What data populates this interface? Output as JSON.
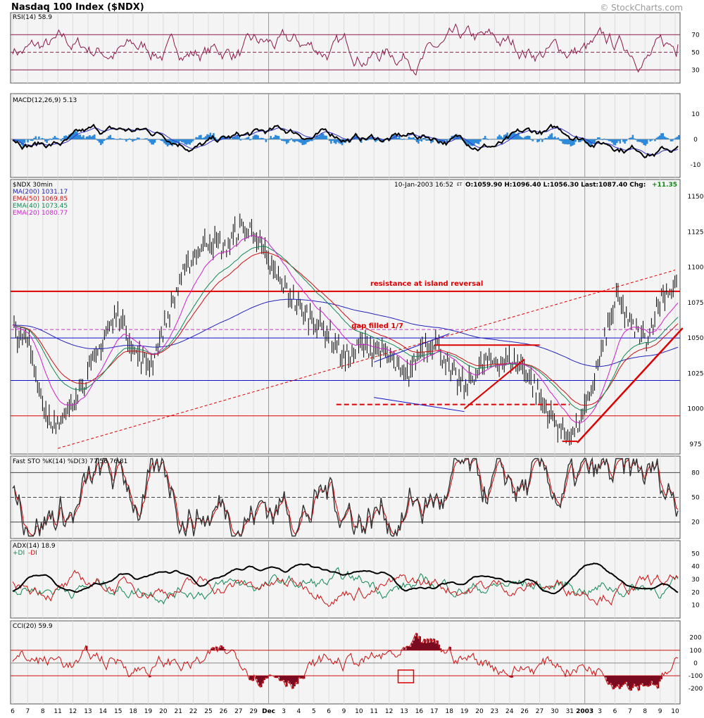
{
  "header": {
    "title": "Nasdaq 100 Index ($NDX)",
    "credit": "© StockCharts.com"
  },
  "panels": {
    "rsi": {
      "label": "RSI(14) 58.9",
      "levels": [
        70,
        50,
        30
      ],
      "ticks": [
        "70",
        "50",
        "30"
      ],
      "range": [
        15,
        95
      ]
    },
    "macd": {
      "label": "MACD(12,26,9) 5.13",
      "ticks": [
        "10",
        "0",
        "-10"
      ],
      "range": [
        -15,
        18
      ]
    },
    "price": {
      "label": "$NDX 30min",
      "ma200": "MA(200) 1031.17",
      "ema50": "EMA(50) 1069.85",
      "ema40": "EMA(40) 1073.45",
      "ema20": "EMA(20) 1080.77",
      "quote_date": "10-Jan-2003 16:52",
      "quote_et": "ET",
      "quote_ohlc": "O:1059.90 H:1096.40 L:1056.30 Last:1087.40 Chg:",
      "quote_chg": "+11.35",
      "annotation_resistance": "resistance at island reversal",
      "annotation_gap": "gap filled 1/7",
      "ticks": [
        "1150",
        "1125",
        "1100",
        "1075",
        "1050",
        "1025",
        "1000",
        "975"
      ],
      "range": [
        968,
        1162
      ]
    },
    "sto": {
      "label": "Fast STO %K(14) %D(3) 77.56 76.81",
      "ticks": [
        "80",
        "50",
        "20"
      ],
      "range": [
        0,
        100
      ]
    },
    "adx": {
      "label": "ADX(14) 18.9",
      "di_plus": "+DI",
      "di_minus": "-DI",
      "ticks": [
        "50",
        "40",
        "30",
        "20",
        "10"
      ],
      "range": [
        0,
        60
      ]
    },
    "cci": {
      "label": "CCI(20) 59.9",
      "ticks": [
        "200",
        "100",
        "0",
        "-100",
        "-200"
      ],
      "range": [
        -320,
        330
      ]
    }
  },
  "x_axis": {
    "dates": [
      "6",
      "7",
      "8",
      "11",
      "12",
      "13",
      "14",
      "15",
      "18",
      "19",
      "20",
      "21",
      "22",
      "25",
      "26",
      "27",
      "29",
      "Dec",
      "3",
      "4",
      "5",
      "6",
      "9",
      "10",
      "11",
      "12",
      "13",
      "16",
      "17",
      "18",
      "19",
      "20",
      "23",
      "24",
      "26",
      "27",
      "30",
      "31",
      "2003",
      "3",
      "6",
      "7",
      "8",
      "9",
      "10"
    ]
  },
  "colors": {
    "price_bars": "#000000",
    "ma200": "#2222bb",
    "ema50": "#cc1111",
    "ema40": "#118855",
    "ema20": "#cc22cc",
    "trend_red": "#dd0000",
    "blue_lines": "#1111cc",
    "macd_hist": "#2e8ad8",
    "rsi_line": "#8b1a4a",
    "rsi_fill": "#a08a6a",
    "cci_fill": "#7a0a20",
    "panel_bg": "#f4f4f4"
  },
  "chart_data": {
    "type": "line",
    "title": "Nasdaq 100 Index ($NDX)",
    "subtitle": "$NDX 30min",
    "x_categories": [
      "6",
      "7",
      "8",
      "11",
      "12",
      "13",
      "14",
      "15",
      "18",
      "19",
      "20",
      "21",
      "22",
      "25",
      "26",
      "27",
      "29",
      "Dec",
      "3",
      "4",
      "5",
      "6",
      "9",
      "10",
      "11",
      "12",
      "13",
      "16",
      "17",
      "18",
      "19",
      "20",
      "23",
      "24",
      "26",
      "27",
      "30",
      "31",
      "2003",
      "3",
      "6",
      "7",
      "8",
      "9",
      "10"
    ],
    "price_close_by_session": [
      1055,
      1045,
      1000,
      985,
      1010,
      1025,
      1052,
      1068,
      1040,
      1030,
      1058,
      1090,
      1110,
      1120,
      1112,
      1128,
      1125,
      1100,
      1085,
      1070,
      1062,
      1052,
      1035,
      1045,
      1042,
      1035,
      1020,
      1043,
      1048,
      1025,
      1015,
      1030,
      1035,
      1033,
      1028,
      1005,
      990,
      980,
      1000,
      1040,
      1078,
      1058,
      1048,
      1080,
      1087
    ],
    "price_ylim": [
      968,
      1162
    ],
    "last_quote": {
      "open": 1059.9,
      "high": 1096.4,
      "low": 1056.3,
      "last": 1087.4,
      "change": 11.35
    },
    "ma200_last": 1031.17,
    "ema50_last": 1069.85,
    "ema40_last": 1073.45,
    "ema20_last": 1080.77,
    "rsi_last": 58.9,
    "macd_last": 5.13,
    "sto_k_last": 77.56,
    "sto_d_last": 76.81,
    "adx_last": 18.9,
    "cci_last": 59.9,
    "horizontal_levels": [
      1083,
      1056,
      1050,
      1020,
      995
    ]
  }
}
